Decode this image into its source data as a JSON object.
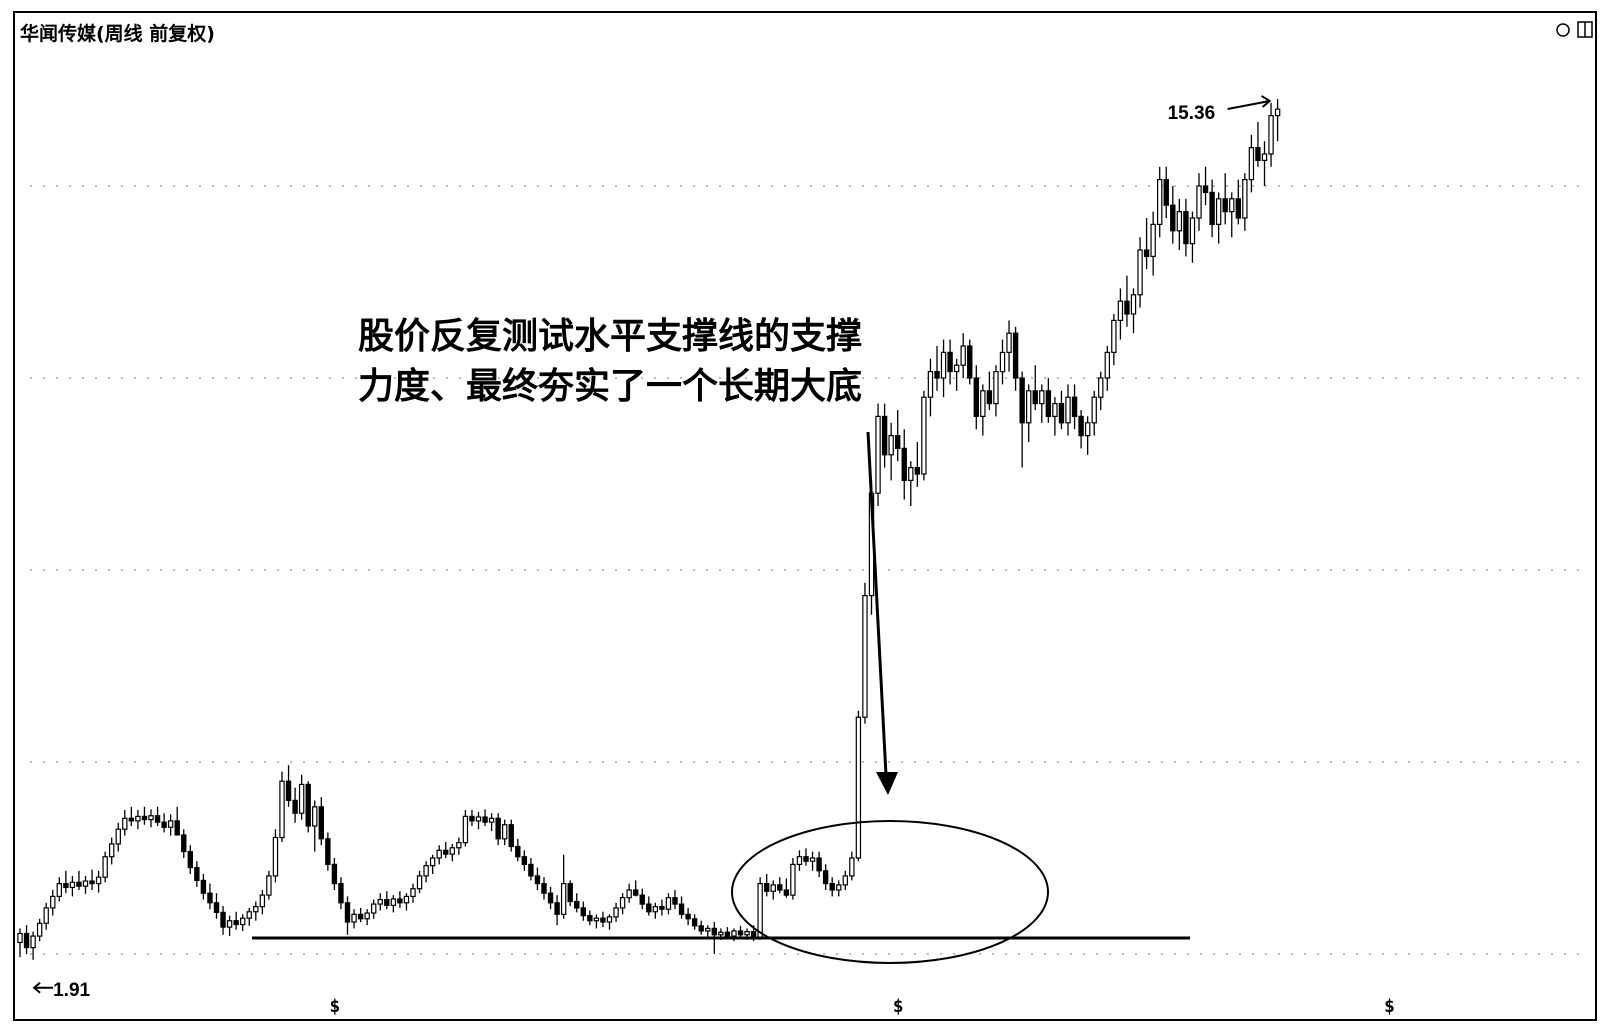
{
  "chart_data": {
    "type": "candlestick",
    "title": "华闻传媒(周线 前复权)",
    "high_label": "15.36",
    "low_label": "1.91",
    "annotation": {
      "lines": [
        "股价反复测试水平支撑线的支撑",
        "力度、最终夯实了一个长期大底"
      ]
    },
    "support_line": {
      "y": 2.25
    },
    "ylim": [
      1.5,
      16.0
    ],
    "x_markers": [
      {
        "label": "$",
        "x": 48
      },
      {
        "label": "$",
        "x": 134
      },
      {
        "label": "$",
        "x": 209
      },
      {
        "label": "↦",
        "x": 270
      }
    ],
    "candles": [
      [
        2.18,
        2.4,
        1.95,
        2.32
      ],
      [
        2.32,
        2.45,
        2.0,
        2.1
      ],
      [
        2.1,
        2.35,
        1.91,
        2.28
      ],
      [
        2.28,
        2.55,
        2.2,
        2.48
      ],
      [
        2.48,
        2.8,
        2.38,
        2.72
      ],
      [
        2.72,
        3.0,
        2.6,
        2.9
      ],
      [
        2.9,
        3.2,
        2.82,
        3.1
      ],
      [
        3.1,
        3.3,
        2.95,
        3.04
      ],
      [
        3.04,
        3.22,
        2.9,
        3.12
      ],
      [
        3.12,
        3.3,
        3.0,
        3.06
      ],
      [
        3.06,
        3.22,
        2.94,
        3.14
      ],
      [
        3.14,
        3.32,
        3.0,
        3.1
      ],
      [
        3.1,
        3.3,
        2.96,
        3.2
      ],
      [
        3.2,
        3.6,
        3.12,
        3.52
      ],
      [
        3.52,
        3.82,
        3.4,
        3.72
      ],
      [
        3.72,
        4.05,
        3.6,
        3.95
      ],
      [
        3.95,
        4.25,
        3.85,
        4.12
      ],
      [
        4.12,
        4.3,
        4.0,
        4.08
      ],
      [
        4.08,
        4.25,
        3.95,
        4.15
      ],
      [
        4.15,
        4.3,
        4.02,
        4.1
      ],
      [
        4.1,
        4.26,
        3.98,
        4.16
      ],
      [
        4.16,
        4.3,
        4.0,
        4.06
      ],
      [
        4.06,
        4.2,
        3.9,
        3.98
      ],
      [
        3.98,
        4.18,
        3.85,
        4.08
      ],
      [
        4.08,
        4.3,
        3.95,
        3.86
      ],
      [
        3.86,
        3.95,
        3.5,
        3.6
      ],
      [
        3.6,
        3.7,
        3.25,
        3.35
      ],
      [
        3.35,
        3.45,
        3.05,
        3.15
      ],
      [
        3.15,
        3.25,
        2.85,
        2.95
      ],
      [
        2.95,
        3.1,
        2.7,
        2.8
      ],
      [
        2.8,
        2.95,
        2.55,
        2.65
      ],
      [
        2.65,
        2.75,
        2.3,
        2.42
      ],
      [
        2.42,
        2.6,
        2.28,
        2.52
      ],
      [
        2.52,
        2.66,
        2.38,
        2.46
      ],
      [
        2.46,
        2.62,
        2.36,
        2.56
      ],
      [
        2.56,
        2.72,
        2.44,
        2.66
      ],
      [
        2.66,
        2.82,
        2.52,
        2.74
      ],
      [
        2.74,
        3.0,
        2.62,
        2.92
      ],
      [
        2.92,
        3.3,
        2.85,
        3.22
      ],
      [
        3.22,
        3.95,
        3.12,
        3.82
      ],
      [
        3.82,
        4.85,
        3.75,
        4.7
      ],
      [
        4.7,
        4.95,
        4.3,
        4.4
      ],
      [
        4.4,
        4.6,
        4.05,
        4.2
      ],
      [
        4.2,
        4.8,
        4.1,
        4.65
      ],
      [
        4.65,
        4.7,
        3.9,
        4.0
      ],
      [
        4.0,
        4.4,
        3.6,
        4.3
      ],
      [
        4.3,
        4.45,
        3.7,
        3.8
      ],
      [
        3.8,
        3.9,
        3.3,
        3.4
      ],
      [
        3.4,
        3.5,
        3.0,
        3.1
      ],
      [
        3.1,
        3.2,
        2.7,
        2.8
      ],
      [
        2.8,
        2.9,
        2.3,
        2.5
      ],
      [
        2.5,
        2.7,
        2.4,
        2.62
      ],
      [
        2.62,
        2.72,
        2.5,
        2.55
      ],
      [
        2.55,
        2.7,
        2.45,
        2.64
      ],
      [
        2.64,
        2.85,
        2.55,
        2.78
      ],
      [
        2.78,
        2.95,
        2.68,
        2.85
      ],
      [
        2.85,
        2.98,
        2.7,
        2.76
      ],
      [
        2.76,
        2.92,
        2.65,
        2.86
      ],
      [
        2.86,
        2.98,
        2.72,
        2.8
      ],
      [
        2.8,
        2.95,
        2.68,
        2.9
      ],
      [
        2.9,
        3.1,
        2.8,
        3.02
      ],
      [
        3.02,
        3.3,
        2.95,
        3.22
      ],
      [
        3.22,
        3.45,
        3.12,
        3.38
      ],
      [
        3.38,
        3.55,
        3.25,
        3.5
      ],
      [
        3.5,
        3.7,
        3.4,
        3.62
      ],
      [
        3.62,
        3.75,
        3.5,
        3.56
      ],
      [
        3.56,
        3.72,
        3.45,
        3.66
      ],
      [
        3.66,
        3.82,
        3.55,
        3.74
      ],
      [
        3.74,
        4.25,
        3.68,
        4.15
      ],
      [
        4.15,
        4.25,
        4.0,
        4.08
      ],
      [
        4.08,
        4.22,
        3.95,
        4.14
      ],
      [
        4.14,
        4.26,
        4.0,
        4.06
      ],
      [
        4.06,
        4.2,
        3.92,
        4.12
      ],
      [
        4.12,
        4.2,
        3.7,
        3.8
      ],
      [
        3.8,
        4.1,
        3.7,
        4.02
      ],
      [
        4.02,
        4.1,
        3.6,
        3.68
      ],
      [
        3.68,
        3.8,
        3.45,
        3.52
      ],
      [
        3.52,
        3.62,
        3.3,
        3.4
      ],
      [
        3.4,
        3.5,
        3.15,
        3.22
      ],
      [
        3.22,
        3.35,
        3.0,
        3.1
      ],
      [
        3.1,
        3.2,
        2.85,
        2.95
      ],
      [
        2.95,
        3.05,
        2.7,
        2.8
      ],
      [
        2.8,
        2.92,
        2.45,
        2.62
      ],
      [
        2.62,
        3.55,
        2.55,
        3.1
      ],
      [
        3.1,
        3.15,
        2.75,
        2.82
      ],
      [
        2.82,
        2.95,
        2.65,
        2.72
      ],
      [
        2.72,
        2.82,
        2.52,
        2.6
      ],
      [
        2.6,
        2.68,
        2.45,
        2.52
      ],
      [
        2.52,
        2.62,
        2.4,
        2.56
      ],
      [
        2.56,
        2.66,
        2.42,
        2.5
      ],
      [
        2.5,
        2.62,
        2.38,
        2.58
      ],
      [
        2.58,
        2.8,
        2.5,
        2.72
      ],
      [
        2.72,
        2.95,
        2.62,
        2.88
      ],
      [
        2.88,
        3.1,
        2.8,
        3.0
      ],
      [
        3.0,
        3.15,
        2.9,
        2.92
      ],
      [
        2.92,
        3.02,
        2.7,
        2.78
      ],
      [
        2.78,
        2.9,
        2.6,
        2.66
      ],
      [
        2.66,
        2.8,
        2.55,
        2.74
      ],
      [
        2.74,
        2.85,
        2.6,
        2.7
      ],
      [
        2.7,
        2.95,
        2.62,
        2.88
      ],
      [
        2.88,
        3.0,
        2.7,
        2.78
      ],
      [
        2.78,
        2.9,
        2.55,
        2.62
      ],
      [
        2.62,
        2.72,
        2.45,
        2.55
      ],
      [
        2.55,
        2.62,
        2.38,
        2.44
      ],
      [
        2.44,
        2.52,
        2.3,
        2.36
      ],
      [
        2.36,
        2.45,
        2.25,
        2.4
      ],
      [
        2.4,
        2.5,
        2.0,
        2.3
      ],
      [
        2.3,
        2.4,
        2.22,
        2.34
      ],
      [
        2.34,
        2.42,
        2.24,
        2.28
      ],
      [
        2.28,
        2.4,
        2.2,
        2.36
      ],
      [
        2.36,
        2.44,
        2.24,
        2.3
      ],
      [
        2.3,
        2.4,
        2.22,
        2.35
      ],
      [
        2.35,
        2.45,
        2.2,
        2.26
      ],
      [
        2.26,
        3.2,
        2.22,
        3.1
      ],
      [
        3.1,
        3.25,
        2.9,
        2.98
      ],
      [
        2.98,
        3.15,
        2.85,
        3.08
      ],
      [
        3.08,
        3.2,
        2.95,
        3.0
      ],
      [
        3.0,
        3.18,
        2.88,
        2.92
      ],
      [
        2.92,
        3.5,
        2.85,
        3.4
      ],
      [
        3.4,
        3.62,
        3.3,
        3.52
      ],
      [
        3.52,
        3.65,
        3.38,
        3.45
      ],
      [
        3.45,
        3.6,
        3.3,
        3.5
      ],
      [
        3.5,
        3.6,
        3.2,
        3.3
      ],
      [
        3.3,
        3.4,
        3.0,
        3.1
      ],
      [
        3.1,
        3.2,
        2.9,
        3.0
      ],
      [
        3.0,
        3.15,
        2.9,
        3.08
      ],
      [
        3.08,
        3.3,
        3.0,
        3.22
      ],
      [
        3.22,
        3.6,
        3.15,
        3.5
      ],
      [
        3.5,
        5.8,
        3.45,
        5.7
      ],
      [
        5.7,
        7.8,
        5.6,
        7.6
      ],
      [
        7.6,
        9.4,
        7.3,
        9.2
      ],
      [
        9.2,
        10.6,
        9.0,
        10.4
      ],
      [
        10.4,
        10.6,
        9.6,
        9.8
      ],
      [
        9.8,
        10.3,
        9.4,
        10.1
      ],
      [
        10.1,
        10.5,
        9.7,
        9.9
      ],
      [
        9.9,
        10.2,
        9.1,
        9.4
      ],
      [
        9.4,
        9.7,
        9.0,
        9.6
      ],
      [
        9.6,
        10.0,
        9.3,
        9.5
      ],
      [
        9.5,
        10.8,
        9.4,
        10.7
      ],
      [
        10.7,
        11.3,
        10.4,
        11.1
      ],
      [
        11.1,
        11.5,
        10.8,
        11.0
      ],
      [
        11.0,
        11.6,
        10.7,
        11.4
      ],
      [
        11.4,
        11.6,
        10.9,
        11.1
      ],
      [
        11.1,
        11.3,
        10.8,
        11.2
      ],
      [
        11.2,
        11.7,
        11.0,
        11.5
      ],
      [
        11.5,
        11.6,
        10.9,
        11.0
      ],
      [
        11.0,
        11.2,
        10.2,
        10.4
      ],
      [
        10.4,
        10.9,
        10.1,
        10.8
      ],
      [
        10.8,
        11.1,
        10.5,
        10.6
      ],
      [
        10.6,
        11.2,
        10.4,
        11.1
      ],
      [
        11.1,
        11.6,
        10.9,
        11.4
      ],
      [
        11.4,
        11.9,
        11.1,
        11.7
      ],
      [
        11.7,
        11.8,
        10.8,
        11.0
      ],
      [
        11.0,
        11.1,
        9.6,
        10.3
      ],
      [
        10.3,
        10.9,
        10.0,
        10.8
      ],
      [
        10.8,
        11.2,
        10.5,
        10.6
      ],
      [
        10.6,
        10.9,
        10.3,
        10.8
      ],
      [
        10.8,
        11.0,
        10.3,
        10.4
      ],
      [
        10.4,
        10.7,
        10.1,
        10.6
      ],
      [
        10.6,
        10.8,
        10.2,
        10.3
      ],
      [
        10.3,
        10.9,
        10.1,
        10.7
      ],
      [
        10.7,
        10.9,
        10.2,
        10.4
      ],
      [
        10.4,
        10.5,
        9.9,
        10.1
      ],
      [
        10.1,
        10.4,
        9.8,
        10.3
      ],
      [
        10.3,
        10.8,
        10.1,
        10.7
      ],
      [
        10.7,
        11.1,
        10.5,
        11.0
      ],
      [
        11.0,
        11.5,
        10.8,
        11.4
      ],
      [
        11.4,
        12.0,
        11.2,
        11.9
      ],
      [
        11.9,
        12.4,
        11.6,
        12.2
      ],
      [
        12.2,
        12.6,
        11.8,
        12.0
      ],
      [
        12.0,
        12.4,
        11.7,
        12.3
      ],
      [
        12.3,
        13.2,
        12.1,
        13.0
      ],
      [
        13.0,
        13.5,
        12.7,
        12.9
      ],
      [
        12.9,
        13.6,
        12.6,
        13.4
      ],
      [
        13.4,
        14.3,
        13.2,
        14.1
      ],
      [
        14.1,
        14.3,
        13.5,
        13.7
      ],
      [
        13.7,
        14.0,
        13.1,
        13.3
      ],
      [
        13.3,
        13.8,
        13.0,
        13.6
      ],
      [
        13.6,
        13.8,
        12.9,
        13.1
      ],
      [
        13.1,
        13.6,
        12.8,
        13.5
      ],
      [
        13.5,
        14.2,
        13.3,
        14.0
      ],
      [
        14.0,
        14.3,
        13.7,
        13.9
      ],
      [
        13.9,
        14.1,
        13.2,
        13.4
      ],
      [
        13.4,
        13.9,
        13.1,
        13.8
      ],
      [
        13.8,
        14.2,
        13.4,
        13.6
      ],
      [
        13.6,
        13.9,
        13.2,
        13.8
      ],
      [
        13.8,
        14.1,
        13.4,
        13.5
      ],
      [
        13.5,
        14.2,
        13.3,
        14.1
      ],
      [
        14.1,
        14.8,
        13.9,
        14.6
      ],
      [
        14.6,
        15.0,
        14.3,
        14.4
      ],
      [
        14.4,
        14.7,
        14.0,
        14.5
      ],
      [
        14.5,
        15.3,
        14.3,
        15.1
      ],
      [
        15.1,
        15.36,
        14.7,
        15.2
      ]
    ]
  }
}
